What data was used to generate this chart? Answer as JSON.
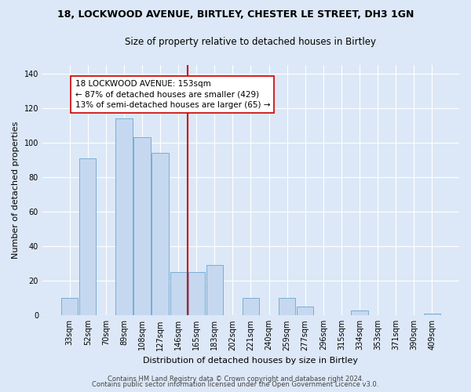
{
  "title_line1": "18, LOCKWOOD AVENUE, BIRTLEY, CHESTER LE STREET, DH3 1GN",
  "title_line2": "Size of property relative to detached houses in Birtley",
  "xlabel": "Distribution of detached houses by size in Birtley",
  "ylabel": "Number of detached properties",
  "categories": [
    "33sqm",
    "52sqm",
    "70sqm",
    "89sqm",
    "108sqm",
    "127sqm",
    "146sqm",
    "165sqm",
    "183sqm",
    "202sqm",
    "221sqm",
    "240sqm",
    "259sqm",
    "277sqm",
    "296sqm",
    "315sqm",
    "334sqm",
    "353sqm",
    "371sqm",
    "390sqm",
    "409sqm"
  ],
  "bar_heights": [
    10,
    91,
    0,
    114,
    103,
    94,
    25,
    25,
    29,
    0,
    10,
    0,
    10,
    5,
    0,
    0,
    3,
    0,
    0,
    0,
    1
  ],
  "bar_color": "#c5d8f0",
  "bar_edge_color": "#7aadd4",
  "vline_color": "#cc0000",
  "annotation_text": "18 LOCKWOOD AVENUE: 153sqm\n← 87% of detached houses are smaller (429)\n13% of semi-detached houses are larger (65) →",
  "annotation_box_color": "#ffffff",
  "annotation_box_edge": "#cc0000",
  "bg_color": "#dce8f7",
  "plot_bg_color": "#dce8f7",
  "ylim": [
    0,
    145
  ],
  "yticks": [
    0,
    20,
    40,
    60,
    80,
    100,
    120,
    140
  ],
  "footer_line1": "Contains HM Land Registry data © Crown copyright and database right 2024.",
  "footer_line2": "Contains public sector information licensed under the Open Government Licence v3.0.",
  "title_fontsize": 9,
  "subtitle_fontsize": 8.5,
  "axis_label_fontsize": 8,
  "tick_fontsize": 7,
  "annotation_fontsize": 7.5,
  "footer_fontsize": 6
}
